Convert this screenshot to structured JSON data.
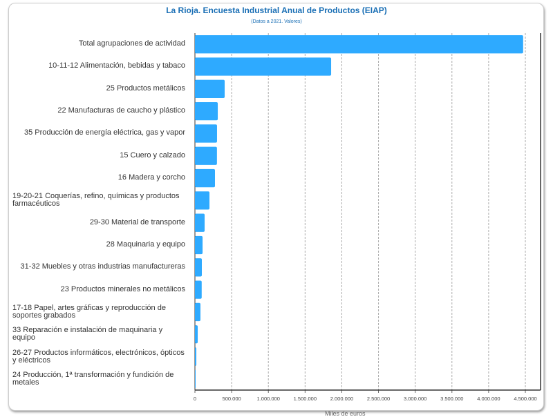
{
  "chart_data": {
    "type": "bar",
    "orientation": "horizontal",
    "title": "La Rioja. Encuesta Industrial Anual de Productos (EIAP)",
    "subtitle": "(Datos a 2021. Valores)",
    "xlabel": "Miles de euros",
    "ylabel": "",
    "xlim": [
      0,
      4700000
    ],
    "xticks": [
      0,
      500000,
      1000000,
      1500000,
      2000000,
      2500000,
      3000000,
      3500000,
      4000000,
      4500000
    ],
    "xtick_labels": [
      "0",
      "500.000",
      "1.000.000",
      "1.500.000",
      "2.000.000",
      "2.500.000",
      "3.000.000",
      "3.500.000",
      "4.000.000",
      "4.500.000"
    ],
    "grid": true,
    "color": "#2eaaff",
    "categories": [
      "Total agrupaciones de actividad",
      "10-11-12 Alimentación, bebidas y tabaco",
      "25 Productos metálicos",
      "22 Manufacturas de caucho y plástico",
      "35 Producción de energía eléctrica, gas y vapor",
      "15 Cuero y calzado",
      "16 Madera y corcho",
      "19-20-21 Coquerías, refino, químicas y productos farmacéuticos",
      "29-30 Material de transporte",
      "28 Maquinaria y equipo",
      "31-32 Muebles y otras industrias manufactureras",
      "23 Productos minerales no metálicos",
      "17-18 Papel, artes gráficas y reproducción de soportes grabados",
      "33 Reparación e instalación de maquinaria y equipo",
      "26-27 Productos informáticos, electrónicos, ópticos y eléctricos",
      "24 Producción, 1ª transformación y fundición de metales"
    ],
    "values": [
      4470000,
      1855000,
      405000,
      311000,
      301000,
      300000,
      273000,
      198000,
      132000,
      104000,
      94000,
      92000,
      75000,
      38000,
      19000,
      2000
    ]
  }
}
